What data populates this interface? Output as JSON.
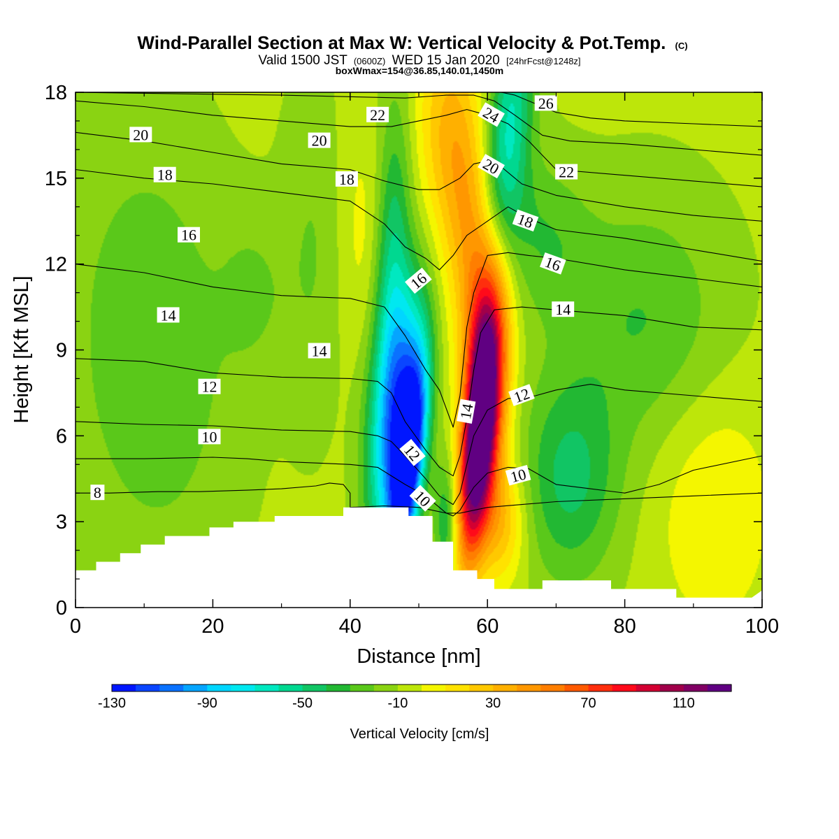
{
  "title": {
    "main": "Wind-Parallel Section at Max W: Vertical Velocity & Pot.Temp.",
    "copyright": "(C)",
    "valid_pre": "Valid 1500 JST",
    "valid_z": "(0600Z)",
    "valid_date": "WED 15 Jan 2020",
    "valid_fcst": "[24hrFcst@1248z]",
    "box": "boxWmax=154@36.85,140.01,1450m"
  },
  "chart_data": {
    "type": "heatmap",
    "xlabel": "Distance [nm]",
    "ylabel": "Height [Kft MSL]",
    "xlim": [
      0,
      100
    ],
    "ylim": [
      0,
      18
    ],
    "x_ticks": [
      0,
      20,
      40,
      60,
      80,
      100
    ],
    "y_ticks": [
      0,
      3,
      6,
      9,
      12,
      15,
      18
    ],
    "colorbar": {
      "label": "Vertical Velocity [cm/s]",
      "tick_values": [
        -130,
        -90,
        -50,
        -10,
        30,
        70,
        110
      ],
      "tick_labels": [
        "-130",
        "-90",
        "-50",
        "-10",
        "30",
        "70",
        "110"
      ],
      "range": [
        -130,
        130
      ],
      "colors": [
        "#0016ff",
        "#0a45ff",
        "#0a72ff",
        "#05a5ff",
        "#00d6ff",
        "#00e8f0",
        "#00e8c0",
        "#00d890",
        "#11c564",
        "#22b833",
        "#5ac81a",
        "#8ad312",
        "#bde60a",
        "#f4f600",
        "#ffe200",
        "#ffc800",
        "#ffb000",
        "#ff9700",
        "#ff7e00",
        "#ff5a00",
        "#ff2e0d",
        "#ff0a1a",
        "#d30032",
        "#a1004a",
        "#810064",
        "#600082"
      ]
    },
    "terrain_profile": [
      [
        0,
        1.3
      ],
      [
        3,
        1.3
      ],
      [
        3,
        1.6
      ],
      [
        6.5,
        1.6
      ],
      [
        6.5,
        1.9
      ],
      [
        9.5,
        1.9
      ],
      [
        9.5,
        2.2
      ],
      [
        13,
        2.2
      ],
      [
        13,
        2.5
      ],
      [
        19.5,
        2.5
      ],
      [
        19.5,
        2.8
      ],
      [
        23,
        2.8
      ],
      [
        23,
        3.0
      ],
      [
        29,
        3.0
      ],
      [
        29,
        3.2
      ],
      [
        39,
        3.2
      ],
      [
        39,
        3.5
      ],
      [
        48.5,
        3.5
      ],
      [
        48.5,
        3.2
      ],
      [
        52,
        3.2
      ],
      [
        52,
        2.3
      ],
      [
        55,
        2.3
      ],
      [
        55,
        1.3
      ],
      [
        58.5,
        1.3
      ],
      [
        58.5,
        1.0
      ],
      [
        61,
        1.0
      ],
      [
        61,
        0.65
      ],
      [
        68,
        0.65
      ],
      [
        68,
        0.95
      ],
      [
        78,
        0.95
      ],
      [
        78,
        0.65
      ],
      [
        87.5,
        0.65
      ],
      [
        87.5,
        0.35
      ],
      [
        98.5,
        0.35
      ],
      [
        100,
        0.6
      ]
    ],
    "theta_contours": [
      {
        "value": 8,
        "label": "8",
        "points": [
          [
            0,
            4.0
          ],
          [
            5,
            4.0
          ],
          [
            12,
            4.05
          ],
          [
            18,
            4.05
          ],
          [
            25,
            4.1
          ],
          [
            30,
            4.15
          ],
          [
            35,
            4.25
          ],
          [
            37,
            4.35
          ],
          [
            39,
            4.3
          ],
          [
            40,
            4.0
          ],
          [
            40,
            3.5
          ],
          [
            45,
            3.55
          ],
          [
            50,
            3.5
          ],
          [
            52,
            3.4
          ],
          [
            54,
            3.3
          ],
          [
            56,
            3.3
          ],
          [
            58,
            3.4
          ],
          [
            60,
            3.5
          ],
          [
            65,
            3.6
          ],
          [
            70,
            3.7
          ],
          [
            80,
            3.8
          ],
          [
            90,
            3.9
          ],
          [
            100,
            4.0
          ]
        ]
      },
      {
        "value": 10,
        "label": "10",
        "points": [
          [
            0,
            5.2
          ],
          [
            10,
            5.2
          ],
          [
            20,
            5.25
          ],
          [
            25,
            5.2
          ],
          [
            30,
            5.1
          ],
          [
            35,
            5.05
          ],
          [
            40,
            5.0
          ],
          [
            44,
            4.9
          ],
          [
            48,
            4.3
          ],
          [
            51,
            3.9
          ],
          [
            54,
            3.3
          ],
          [
            55,
            3.2
          ],
          [
            56,
            3.4
          ],
          [
            58,
            4.2
          ],
          [
            60,
            4.7
          ],
          [
            63,
            4.9
          ],
          [
            66,
            4.85
          ],
          [
            70,
            4.3
          ],
          [
            75,
            4.15
          ],
          [
            80,
            4.0
          ],
          [
            85,
            4.3
          ],
          [
            90,
            4.8
          ],
          [
            100,
            5.3
          ]
        ]
      },
      {
        "value": 12,
        "label": "12",
        "points": [
          [
            0,
            6.5
          ],
          [
            10,
            6.4
          ],
          [
            20,
            6.35
          ],
          [
            30,
            6.2
          ],
          [
            40,
            6.15
          ],
          [
            44,
            6.0
          ],
          [
            46,
            5.8
          ],
          [
            48,
            5.3
          ],
          [
            51,
            4.5
          ],
          [
            53,
            3.9
          ],
          [
            55,
            3.6
          ],
          [
            56,
            4.0
          ],
          [
            57,
            5.0
          ],
          [
            58,
            6.0
          ],
          [
            60,
            6.9
          ],
          [
            63,
            7.3
          ],
          [
            67,
            7.4
          ],
          [
            70,
            7.6
          ],
          [
            75,
            7.8
          ],
          [
            80,
            7.6
          ],
          [
            90,
            7.4
          ],
          [
            100,
            7.2
          ]
        ]
      },
      {
        "value": 14,
        "label": "14",
        "points": [
          [
            0,
            8.7
          ],
          [
            10,
            8.6
          ],
          [
            20,
            8.2
          ],
          [
            30,
            8.05
          ],
          [
            40,
            8.0
          ],
          [
            44,
            7.9
          ],
          [
            46,
            7.5
          ],
          [
            48,
            6.5
          ],
          [
            51,
            5.5
          ],
          [
            53,
            4.9
          ],
          [
            55,
            4.6
          ],
          [
            56,
            5.3
          ],
          [
            57,
            6.6
          ],
          [
            58,
            8.3
          ],
          [
            59,
            9.6
          ],
          [
            61,
            10.4
          ],
          [
            65,
            10.5
          ],
          [
            70,
            10.4
          ],
          [
            80,
            10.2
          ],
          [
            90,
            9.8
          ],
          [
            100,
            9.7
          ]
        ]
      },
      {
        "value": 16,
        "label": "16",
        "points": [
          [
            0,
            12.0
          ],
          [
            10,
            11.7
          ],
          [
            20,
            11.2
          ],
          [
            30,
            10.9
          ],
          [
            40,
            10.8
          ],
          [
            45,
            10.5
          ],
          [
            48,
            9.5
          ],
          [
            51,
            8.3
          ],
          [
            53,
            7.6
          ],
          [
            55,
            6.3
          ],
          [
            56,
            7.4
          ],
          [
            57,
            9.8
          ],
          [
            58,
            11.0
          ],
          [
            60,
            12.3
          ],
          [
            63,
            12.4
          ],
          [
            66,
            12.3
          ],
          [
            70,
            12.2
          ],
          [
            80,
            11.8
          ],
          [
            90,
            11.5
          ],
          [
            100,
            11.2
          ]
        ]
      },
      {
        "value": 18,
        "label": "18",
        "points": [
          [
            0,
            15.3
          ],
          [
            10,
            15.0
          ],
          [
            20,
            14.8
          ],
          [
            30,
            14.5
          ],
          [
            40,
            14.2
          ],
          [
            45,
            13.4
          ],
          [
            48,
            12.6
          ],
          [
            51,
            12.2
          ],
          [
            53,
            11.8
          ],
          [
            55,
            12.3
          ],
          [
            57,
            13.0
          ],
          [
            60,
            13.5
          ],
          [
            63,
            14.0
          ],
          [
            66,
            13.6
          ],
          [
            70,
            13.2
          ],
          [
            80,
            12.9
          ],
          [
            90,
            12.5
          ],
          [
            100,
            12.1
          ]
        ]
      },
      {
        "value": 20,
        "label": "20",
        "points": [
          [
            0,
            16.6
          ],
          [
            10,
            16.3
          ],
          [
            20,
            15.9
          ],
          [
            30,
            15.5
          ],
          [
            40,
            15.3
          ],
          [
            45,
            14.9
          ],
          [
            50,
            14.6
          ],
          [
            53,
            14.6
          ],
          [
            56,
            15.0
          ],
          [
            58,
            15.5
          ],
          [
            60,
            15.6
          ],
          [
            62,
            15.4
          ],
          [
            65,
            14.8
          ],
          [
            70,
            14.4
          ],
          [
            80,
            14.0
          ],
          [
            90,
            13.7
          ],
          [
            100,
            13.5
          ]
        ]
      },
      {
        "value": 22,
        "label": "22",
        "points": [
          [
            0,
            17.7
          ],
          [
            10,
            17.5
          ],
          [
            20,
            17.2
          ],
          [
            30,
            17.0
          ],
          [
            40,
            16.8
          ],
          [
            46,
            16.8
          ],
          [
            50,
            17.0
          ],
          [
            54,
            17.2
          ],
          [
            57,
            17.4
          ],
          [
            60,
            17.2
          ],
          [
            63,
            16.9
          ],
          [
            66,
            16.3
          ],
          [
            70,
            15.3
          ],
          [
            80,
            15.1
          ],
          [
            90,
            14.9
          ],
          [
            100,
            14.7
          ]
        ]
      },
      {
        "value": 24,
        "label": "24",
        "points": [
          [
            0,
            18.0
          ],
          [
            30,
            17.9
          ],
          [
            48,
            17.8
          ],
          [
            54,
            17.9
          ],
          [
            58,
            17.9
          ],
          [
            61,
            17.7
          ],
          [
            64,
            17.2
          ],
          [
            68,
            16.5
          ],
          [
            72,
            16.3
          ],
          [
            80,
            16.2
          ],
          [
            90,
            16.0
          ],
          [
            100,
            15.8
          ]
        ]
      },
      {
        "value": 26,
        "label": "26",
        "points": [
          [
            62,
            18.0
          ],
          [
            64,
            17.9
          ],
          [
            67,
            17.6
          ],
          [
            70,
            17.3
          ],
          [
            75,
            17.1
          ],
          [
            80,
            17.0
          ],
          [
            90,
            16.9
          ],
          [
            100,
            16.8
          ]
        ]
      }
    ],
    "contour_labels": [
      {
        "text": "8",
        "x": 3.2,
        "y": 4.0,
        "angle": 0
      },
      {
        "text": "10",
        "x": 19.5,
        "y": 5.95,
        "angle": 0
      },
      {
        "text": "12",
        "x": 19.5,
        "y": 7.7,
        "angle": 0
      },
      {
        "text": "14",
        "x": 13.5,
        "y": 10.2,
        "angle": 0
      },
      {
        "text": "16",
        "x": 16.5,
        "y": 13.0,
        "angle": 0
      },
      {
        "text": "18",
        "x": 13.0,
        "y": 15.1,
        "angle": 0
      },
      {
        "text": "20",
        "x": 9.5,
        "y": 16.5,
        "angle": 0
      },
      {
        "text": "14",
        "x": 35.5,
        "y": 8.95,
        "angle": 0
      },
      {
        "text": "20",
        "x": 35.5,
        "y": 16.3,
        "angle": 0
      },
      {
        "text": "18",
        "x": 39.5,
        "y": 14.95,
        "angle": 0
      },
      {
        "text": "22",
        "x": 44.0,
        "y": 17.2,
        "angle": 0
      },
      {
        "text": "16",
        "x": 50.0,
        "y": 11.4,
        "angle": -40
      },
      {
        "text": "12",
        "x": 49.0,
        "y": 5.4,
        "angle": 50
      },
      {
        "text": "10",
        "x": 50.5,
        "y": 3.8,
        "angle": 45
      },
      {
        "text": "14",
        "x": 57.0,
        "y": 6.85,
        "angle": -80
      },
      {
        "text": "24",
        "x": 60.5,
        "y": 17.2,
        "angle": 30
      },
      {
        "text": "20",
        "x": 60.5,
        "y": 15.4,
        "angle": 30
      },
      {
        "text": "26",
        "x": 68.5,
        "y": 17.6,
        "angle": 0
      },
      {
        "text": "22",
        "x": 71.5,
        "y": 15.2,
        "angle": 0
      },
      {
        "text": "18",
        "x": 65.5,
        "y": 13.5,
        "angle": 20
      },
      {
        "text": "16",
        "x": 69.5,
        "y": 12.0,
        "angle": 20
      },
      {
        "text": "14",
        "x": 71.0,
        "y": 10.4,
        "angle": 0
      },
      {
        "text": "12",
        "x": 65.0,
        "y": 7.4,
        "angle": -20
      },
      {
        "text": "10",
        "x": 64.5,
        "y": 4.6,
        "angle": -15
      }
    ],
    "vertical_velocity_field": [
      {
        "x": 48.5,
        "y": 5.0,
        "sx": 1.6,
        "sy": 2.6,
        "tilt": 0.42,
        "amp": -130
      },
      {
        "x": 47.5,
        "y": 7.5,
        "sx": 2.2,
        "sy": 3.0,
        "tilt": 0.35,
        "amp": -70
      },
      {
        "x": 46.0,
        "y": 11.0,
        "sx": 1.8,
        "sy": 4.5,
        "tilt": 0.1,
        "amp": -45
      },
      {
        "x": 44.0,
        "y": 5.0,
        "sx": 2.0,
        "sy": 3.0,
        "tilt": 0.0,
        "amp": -25
      },
      {
        "x": 54.0,
        "y": 3.0,
        "sx": 1.2,
        "sy": 1.5,
        "tilt": 0.0,
        "amp": -35
      },
      {
        "x": 58.5,
        "y": 5.5,
        "sx": 1.7,
        "sy": 2.8,
        "tilt": 0.35,
        "amp": 125
      },
      {
        "x": 60.0,
        "y": 8.5,
        "sx": 2.2,
        "sy": 3.2,
        "tilt": 0.15,
        "amp": 80
      },
      {
        "x": 58.0,
        "y": 12.5,
        "sx": 2.6,
        "sy": 4.0,
        "tilt": -0.28,
        "amp": 45
      },
      {
        "x": 53.5,
        "y": 16.5,
        "sx": 3.0,
        "sy": 3.0,
        "tilt": -0.1,
        "amp": 30
      },
      {
        "x": 62.0,
        "y": 3.0,
        "sx": 2.5,
        "sy": 1.5,
        "tilt": 0.0,
        "amp": 35
      },
      {
        "x": 63.0,
        "y": 16.5,
        "sx": 2.3,
        "sy": 3.5,
        "tilt": 0.4,
        "amp": -55
      },
      {
        "x": 68.0,
        "y": 13.0,
        "sx": 5.0,
        "sy": 2.0,
        "tilt": -0.5,
        "amp": -20
      },
      {
        "x": 72.0,
        "y": 4.5,
        "sx": 5.0,
        "sy": 2.5,
        "tilt": 0.0,
        "amp": -35
      },
      {
        "x": 83.0,
        "y": 10.0,
        "sx": 8.0,
        "sy": 3.0,
        "tilt": 0.0,
        "amp": -22
      },
      {
        "x": 11.0,
        "y": 9.0,
        "sx": 8.0,
        "sy": 5.0,
        "tilt": -0.15,
        "amp": -22
      },
      {
        "x": 26.0,
        "y": 11.0,
        "sx": 3.5,
        "sy": 2.0,
        "tilt": 0.0,
        "amp": -12
      },
      {
        "x": 34.5,
        "y": 12.5,
        "sx": 3.0,
        "sy": 4.0,
        "tilt": 0.0,
        "amp": -12
      },
      {
        "x": 93.0,
        "y": 3.5,
        "sx": 6.0,
        "sy": 3.0,
        "tilt": 0.0,
        "amp": 18
      },
      {
        "x": 42.0,
        "y": 13.0,
        "sx": 2.5,
        "sy": 3.0,
        "tilt": 0.0,
        "amp": 12
      }
    ]
  }
}
